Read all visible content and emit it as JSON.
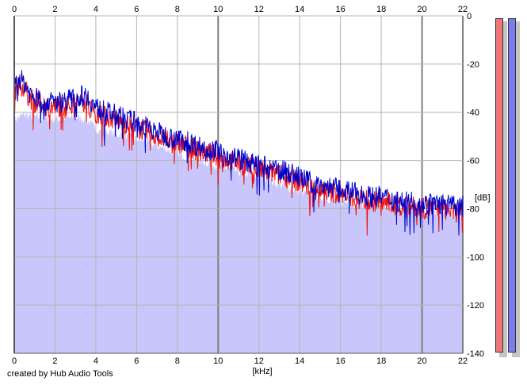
{
  "chart_data": {
    "type": "area",
    "title": "",
    "xlabel": "[kHz]",
    "ylabel": "[dB]",
    "xlim": [
      0,
      22
    ],
    "ylim": [
      -140,
      0
    ],
    "x_ticks": [
      "0",
      "2",
      "4",
      "6",
      "8",
      "10",
      "12",
      "14",
      "16",
      "18",
      "20",
      "22"
    ],
    "y_ticks": [
      "0",
      "-20",
      "-40",
      "-60",
      "-80",
      "-100",
      "-120",
      "-140"
    ],
    "grid": true,
    "colors": {
      "fill": "#c8c6fa",
      "left_channel": "#ee1111",
      "right_channel": "#0000cc",
      "gridline": "#b4b4b4",
      "gridline_major": "#808080"
    },
    "series": [
      {
        "color": "#ee1111",
        "x": [
          0,
          0.25,
          0.5,
          0.75,
          1,
          1.5,
          2,
          2.5,
          3,
          3.5,
          4,
          4.5,
          5,
          5.5,
          6,
          6.5,
          7,
          7.5,
          8,
          8.5,
          9,
          9.5,
          10,
          10.5,
          11,
          11.5,
          12,
          12.5,
          13,
          13.5,
          14,
          14.5,
          15,
          15.5,
          16,
          16.5,
          17,
          17.5,
          18,
          18.5,
          19,
          19.5,
          20,
          20.5,
          21,
          21.5,
          22
        ],
        "values": [
          -32,
          -28,
          -30,
          -34,
          -36,
          -37,
          -38,
          -37,
          -36,
          -35,
          -40,
          -42,
          -43,
          -45,
          -46,
          -48,
          -50,
          -52,
          -53,
          -54,
          -56,
          -57,
          -58,
          -60,
          -61,
          -63,
          -64,
          -65,
          -66,
          -67,
          -69,
          -71,
          -72,
          -73,
          -74,
          -75,
          -76,
          -77,
          -77,
          -78,
          -79,
          -79,
          -80,
          -80,
          -80,
          -81,
          -82
        ]
      },
      {
        "color": "#0000cc",
        "x": [
          0,
          0.25,
          0.5,
          0.75,
          1,
          1.5,
          2,
          2.5,
          3,
          3.5,
          4,
          4.5,
          5,
          5.5,
          6,
          6.5,
          7,
          7.5,
          8,
          8.5,
          9,
          9.5,
          10,
          10.5,
          11,
          11.5,
          12,
          12.5,
          13,
          13.5,
          14,
          14.5,
          15,
          15.5,
          16,
          16.5,
          17,
          17.5,
          18,
          18.5,
          19,
          19.5,
          20,
          20.5,
          21,
          21.5,
          22
        ],
        "values": [
          -30,
          -26,
          -28,
          -32,
          -34,
          -35,
          -36,
          -35,
          -34,
          -33,
          -38,
          -40,
          -41,
          -43,
          -44,
          -46,
          -48,
          -50,
          -51,
          -52,
          -54,
          -55,
          -56,
          -58,
          -59,
          -61,
          -62,
          -63,
          -64,
          -65,
          -67,
          -69,
          -70,
          -71,
          -72,
          -73,
          -74,
          -75,
          -75,
          -76,
          -77,
          -77,
          -78,
          -78,
          -78,
          -79,
          -79
        ]
      }
    ],
    "fill_envelope": {
      "x": [
        0,
        0.5,
        1,
        2,
        3,
        3.5,
        4,
        5,
        6,
        7,
        8,
        9,
        10,
        11,
        12,
        13,
        14,
        15,
        16,
        17,
        18,
        19,
        20,
        21,
        22
      ],
      "values": [
        -43,
        -41,
        -42,
        -43,
        -42,
        -43,
        -47,
        -49,
        -51,
        -54,
        -57,
        -60,
        -62,
        -65,
        -67,
        -70,
        -73,
        -75,
        -77,
        -78,
        -80,
        -80,
        -81,
        -82,
        -83
      ]
    },
    "meters": [
      {
        "color": "#ee7878",
        "level": 1.0
      },
      {
        "color": "#7c7cee",
        "level": 1.0
      }
    ]
  },
  "footer": {
    "credit": "created by Hub Audio Tools"
  }
}
